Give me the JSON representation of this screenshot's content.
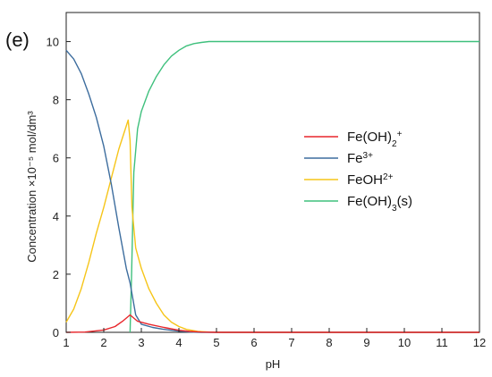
{
  "panel_label": "(e)",
  "chart_data": {
    "type": "line",
    "xlabel": "pH",
    "ylabel": "Concentration ×10⁻⁵ mol/dm³",
    "xlim": [
      1,
      12
    ],
    "ylim": [
      0,
      11
    ],
    "xticks": [
      1,
      2,
      3,
      4,
      5,
      6,
      7,
      8,
      9,
      10,
      11,
      12
    ],
    "yticks": [
      0,
      2,
      4,
      6,
      8,
      10
    ],
    "grid": false,
    "legend_position": "right-middle",
    "series": [
      {
        "name": "Fe(OH)2+",
        "legend_html": "Fe(OH)<tspan baseline-shift=\"sub\" font-size=\"10\">2</tspan><tspan baseline-shift=\"super\" font-size=\"10\">+</tspan>",
        "color": "#e8262b",
        "x": [
          1.0,
          1.5,
          2.0,
          2.3,
          2.5,
          2.7,
          2.9,
          3.2,
          3.6,
          4.0,
          4.3,
          4.6,
          5.0,
          12.0
        ],
        "y": [
          0.0,
          0.01,
          0.08,
          0.2,
          0.38,
          0.6,
          0.38,
          0.28,
          0.17,
          0.07,
          0.03,
          0.01,
          0.0,
          0.0
        ]
      },
      {
        "name": "Fe3+",
        "legend_html": "Fe<tspan baseline-shift=\"super\" font-size=\"10\">3+</tspan>",
        "color": "#3d6d9e",
        "x": [
          1.0,
          1.2,
          1.4,
          1.6,
          1.8,
          2.0,
          2.2,
          2.4,
          2.6,
          2.7,
          2.85,
          3.0,
          3.3,
          3.6,
          4.0,
          4.3,
          4.6,
          12.0
        ],
        "y": [
          9.7,
          9.4,
          8.9,
          8.2,
          7.4,
          6.4,
          5.1,
          3.6,
          2.2,
          1.7,
          0.6,
          0.28,
          0.17,
          0.1,
          0.04,
          0.01,
          0.0,
          0.0
        ]
      },
      {
        "name": "FeOH2+",
        "legend_html": "FeOH<tspan baseline-shift=\"super\" font-size=\"10\">2+</tspan>",
        "color": "#f6c519",
        "x": [
          1.0,
          1.2,
          1.4,
          1.6,
          1.8,
          2.0,
          2.2,
          2.4,
          2.6,
          2.65,
          2.7,
          2.75,
          2.85,
          3.0,
          3.2,
          3.4,
          3.6,
          3.8,
          4.0,
          4.2,
          4.5,
          4.8,
          5.2,
          12.0
        ],
        "y": [
          0.35,
          0.8,
          1.5,
          2.4,
          3.4,
          4.3,
          5.3,
          6.3,
          7.1,
          7.3,
          6.6,
          4.3,
          2.9,
          2.2,
          1.5,
          1.0,
          0.6,
          0.35,
          0.2,
          0.1,
          0.03,
          0.01,
          0.0,
          0.0
        ]
      },
      {
        "name": "Fe(OH)3(s)",
        "legend_html": "Fe(OH)<tspan baseline-shift=\"sub\" font-size=\"10\">3</tspan>(s)",
        "color": "#3fc07d",
        "x": [
          2.7,
          2.74,
          2.8,
          2.9,
          3.0,
          3.2,
          3.4,
          3.6,
          3.8,
          4.0,
          4.2,
          4.4,
          4.6,
          4.8,
          5.0,
          6.0,
          12.0
        ],
        "y": [
          0.0,
          2.0,
          5.5,
          7.0,
          7.6,
          8.3,
          8.8,
          9.2,
          9.5,
          9.7,
          9.85,
          9.93,
          9.97,
          10.0,
          10.0,
          10.0,
          10.0
        ]
      }
    ]
  }
}
